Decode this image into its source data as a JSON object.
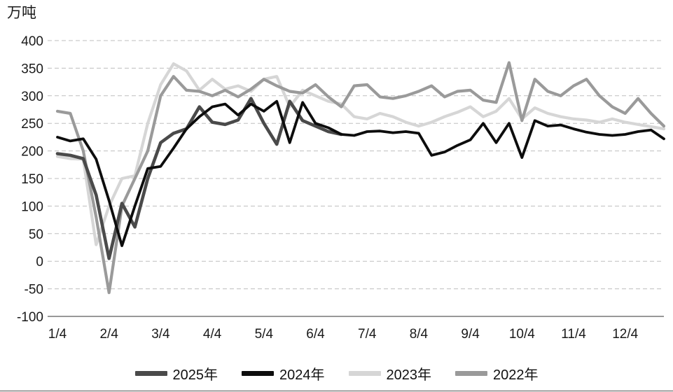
{
  "chart_data": {
    "type": "line",
    "title": "",
    "ylabel": "万吨",
    "xlabel": "",
    "ylim": [
      -100,
      400
    ],
    "yticks": [
      -100,
      -50,
      0,
      50,
      100,
      150,
      200,
      250,
      300,
      350,
      400
    ],
    "x_tick_labels": [
      "1/4",
      "2/4",
      "3/4",
      "4/4",
      "5/4",
      "6/4",
      "7/4",
      "8/4",
      "9/4",
      "10/4",
      "11/4",
      "12/4"
    ],
    "points_per_tick": 4,
    "x_point_count": 48,
    "grid": "horizontal-dashed",
    "grid_color": "#bfbfbf",
    "legend_position": "bottom",
    "series": [
      {
        "name": "2025年",
        "color": "#4a4a4a",
        "values": [
          195,
          192,
          186,
          120,
          5,
          105,
          62,
          150,
          215,
          232,
          240,
          280,
          252,
          248,
          256,
          295,
          250,
          212,
          290,
          255,
          245,
          235,
          230
        ]
      },
      {
        "name": "2024年",
        "color": "#0d0d0d",
        "values": [
          225,
          218,
          222,
          185,
          110,
          28,
          100,
          168,
          172,
          205,
          240,
          262,
          280,
          285,
          265,
          285,
          272,
          290,
          215,
          288,
          250,
          242,
          230,
          228,
          235,
          236,
          233,
          235,
          232,
          192,
          198,
          210,
          220,
          250,
          215,
          250,
          188,
          255,
          245,
          247,
          240,
          234,
          230,
          228,
          230,
          235,
          238,
          222
        ]
      },
      {
        "name": "2023年",
        "color": "#d6d6d6",
        "values": [
          190,
          186,
          185,
          30,
          100,
          150,
          155,
          250,
          320,
          358,
          345,
          310,
          330,
          312,
          318,
          308,
          330,
          335,
          280,
          310,
          300,
          290,
          285,
          262,
          258,
          268,
          262,
          252,
          245,
          252,
          262,
          270,
          280,
          262,
          272,
          295,
          258,
          278,
          268,
          262,
          258,
          256,
          252,
          258,
          252,
          248,
          244,
          240
        ]
      },
      {
        "name": "2022年",
        "color": "#9a9a9a",
        "values": [
          272,
          268,
          200,
          80,
          -57,
          100,
          150,
          200,
          300,
          335,
          310,
          308,
          300,
          310,
          298,
          312,
          330,
          318,
          308,
          305,
          320,
          298,
          280,
          318,
          320,
          298,
          295,
          300,
          308,
          318,
          298,
          308,
          310,
          292,
          288,
          360,
          255,
          330,
          308,
          300,
          318,
          330,
          300,
          280,
          268,
          295,
          268,
          245
        ]
      }
    ],
    "draw_order": [
      2,
      3,
      0,
      1
    ]
  }
}
